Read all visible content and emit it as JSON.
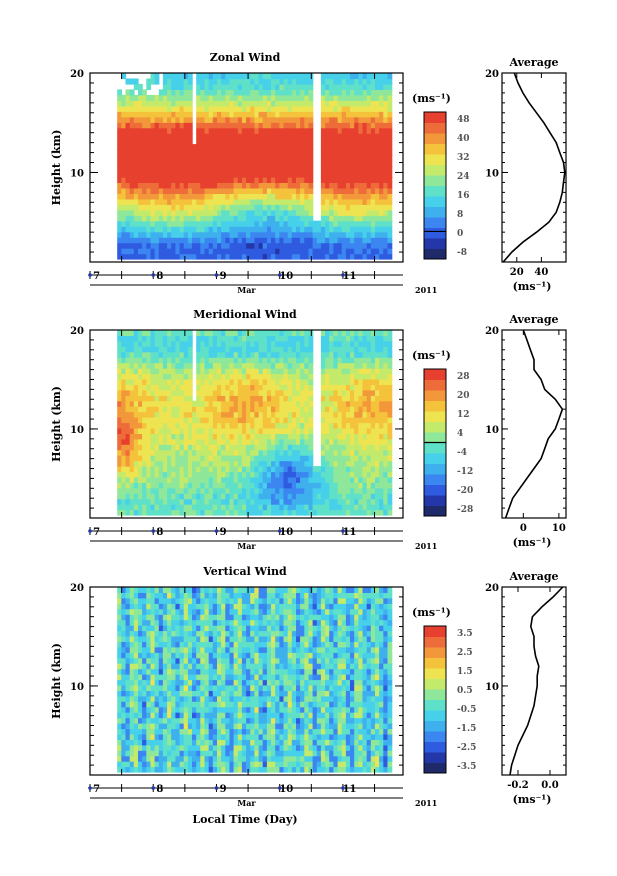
{
  "figure": {
    "xlabel": "Local Time (Day)",
    "month": "Mar",
    "year": "2011"
  },
  "chart_data": [
    {
      "type": "heatmap",
      "title": "Zonal Wind",
      "ylabel": "Height (km)",
      "ylim": [
        1,
        20
      ],
      "yticks": [
        "20",
        "10"
      ],
      "xticks": [
        "7",
        "8",
        "9",
        "10",
        "11"
      ],
      "xlim": [
        6.5,
        11.45
      ],
      "data_xrange": [
        6.93,
        11.27
      ],
      "unit": "(ms⁻¹)",
      "colorbar_ticks": [
        "48",
        "40",
        "32",
        "24",
        "16",
        "8",
        "0",
        "-8"
      ],
      "colorbar_range": [
        -12,
        52
      ],
      "colorbar_zero_line": 0,
      "profile": {
        "title": "Average",
        "xticks": [
          "20",
          "40"
        ],
        "xtick_values": [
          20,
          40
        ],
        "xlim": [
          8,
          60
        ],
        "xlabel": "(ms⁻¹)",
        "yticks": [
          "20",
          "10"
        ],
        "heights": [
          1,
          2,
          3,
          4,
          5,
          6,
          7,
          8,
          9,
          10,
          11,
          12,
          13,
          14,
          15,
          16,
          17,
          18,
          19,
          20
        ],
        "values": [
          9,
          16,
          25,
          36,
          46,
          52,
          55,
          57,
          58,
          59,
          58,
          55,
          52,
          47,
          42,
          36,
          30,
          25,
          21,
          18
        ]
      }
    },
    {
      "type": "heatmap",
      "title": "Meridional Wind",
      "ylabel": "Height (km)",
      "ylim": [
        1,
        20
      ],
      "yticks": [
        "20",
        "10"
      ],
      "xticks": [
        "7",
        "8",
        "9",
        "10",
        "11"
      ],
      "xlim": [
        6.5,
        11.45
      ],
      "data_xrange": [
        6.93,
        11.27
      ],
      "unit": "(ms⁻¹)",
      "colorbar_ticks": [
        "28",
        "20",
        "12",
        "4",
        "-4",
        "-12",
        "-20",
        "-28"
      ],
      "colorbar_range": [
        -32,
        32
      ],
      "colorbar_zero_line": 0,
      "profile": {
        "title": "Average",
        "xticks": [
          "0",
          "10"
        ],
        "xtick_values": [
          0,
          10
        ],
        "xlim": [
          -6,
          12
        ],
        "xlabel": "(ms⁻¹)",
        "yticks": [
          "20",
          "10"
        ],
        "heights": [
          1,
          2,
          3,
          4,
          5,
          6,
          7,
          8,
          9,
          10,
          11,
          12,
          13,
          14,
          15,
          16,
          17,
          18,
          19,
          20
        ],
        "values": [
          -5,
          -4,
          -3,
          -1,
          1,
          3,
          5,
          6,
          7,
          9,
          10,
          11,
          9,
          6,
          5,
          3,
          3,
          2,
          1,
          0
        ]
      }
    },
    {
      "type": "heatmap",
      "title": "Vertical Wind",
      "ylabel": "Height (km)",
      "ylim": [
        1,
        20
      ],
      "yticks": [
        "20",
        "10"
      ],
      "xticks": [
        "7",
        "8",
        "9",
        "10",
        "11"
      ],
      "xlim": [
        6.5,
        11.45
      ],
      "data_xrange": [
        6.93,
        11.27
      ],
      "unit": "(ms⁻¹)",
      "colorbar_ticks": [
        "3.5",
        "2.5",
        "1.5",
        "0.5",
        "-0.5",
        "-1.5",
        "-2.5",
        "-3.5"
      ],
      "colorbar_range": [
        -4,
        4
      ],
      "colorbar_zero_line": null,
      "profile": {
        "title": "Average",
        "xticks": [
          "-0.2",
          "0.0"
        ],
        "xtick_values": [
          -0.2,
          0.0
        ],
        "xlim": [
          -0.3,
          0.1
        ],
        "xlabel": "(ms⁻¹)",
        "yticks": [
          "20",
          "10"
        ],
        "heights": [
          1,
          2,
          3,
          4,
          5,
          6,
          7,
          8,
          9,
          10,
          11,
          12,
          13,
          14,
          15,
          16,
          17,
          18,
          19,
          20
        ],
        "values": [
          -0.25,
          -0.24,
          -0.22,
          -0.2,
          -0.17,
          -0.14,
          -0.12,
          -0.1,
          -0.09,
          -0.08,
          -0.08,
          -0.07,
          -0.09,
          -0.1,
          -0.1,
          -0.12,
          -0.11,
          -0.05,
          0.02,
          0.08
        ]
      }
    }
  ]
}
